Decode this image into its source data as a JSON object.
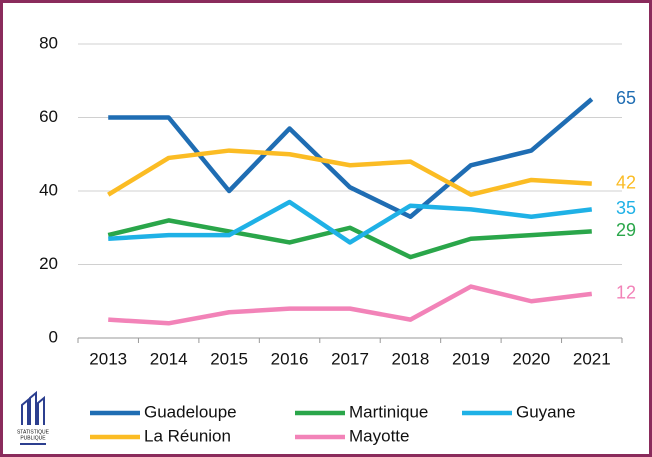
{
  "chart_data": {
    "type": "line",
    "categories": [
      "2013",
      "2014",
      "2015",
      "2016",
      "2017",
      "2018",
      "2019",
      "2020",
      "2021"
    ],
    "series": [
      {
        "name": "Guadeloupe",
        "color": "#1f6db3",
        "values": [
          60,
          60,
          40,
          57,
          41,
          33,
          47,
          51,
          65
        ]
      },
      {
        "name": "Martinique",
        "color": "#2aa64a",
        "values": [
          28,
          32,
          29,
          26,
          30,
          22,
          27,
          28,
          29
        ]
      },
      {
        "name": "Guyane",
        "color": "#1fb1e6",
        "values": [
          27,
          28,
          28,
          37,
          26,
          36,
          35,
          33,
          35
        ]
      },
      {
        "name": "La Réunion",
        "color": "#fbbc24",
        "values": [
          39,
          49,
          51,
          50,
          47,
          48,
          39,
          43,
          42
        ]
      },
      {
        "name": "Mayotte",
        "color": "#f283b8",
        "values": [
          5,
          4,
          7,
          8,
          8,
          5,
          14,
          10,
          12
        ]
      }
    ],
    "ylim": [
      0,
      80
    ],
    "yticks": [
      0,
      20,
      40,
      60,
      80
    ],
    "grid": true,
    "logo": [
      "STATISTIQUE",
      "PUBLIQUE"
    ]
  }
}
